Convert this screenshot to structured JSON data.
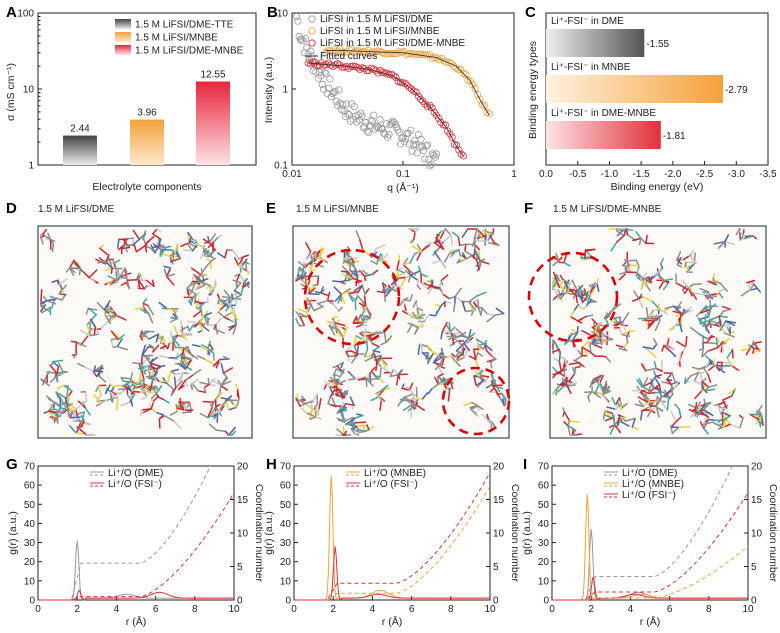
{
  "colors": {
    "gray": "#6e6e6e",
    "orange": "#f5a13a",
    "red": "#e0313a",
    "box": "#3a4a5a"
  },
  "panels": {
    "A": {
      "label": "A",
      "ylabel": "σ (mS cm⁻¹)",
      "xlabel": "Electrolyte components",
      "yticks": [
        "1",
        "10",
        "100"
      ]
    },
    "B": {
      "label": "B",
      "ylabel": "Intensity (a.u.)",
      "xlabel": "q (Å⁻¹)",
      "xticks": [
        "0.01",
        "0.1",
        "1"
      ],
      "yticks": [
        "0.1",
        "1",
        "10"
      ]
    },
    "C": {
      "label": "C",
      "ylabel": "Binding energy types",
      "xlabel": "Binding energy (eV)",
      "xticks": [
        "0.0",
        "-0.5",
        "-1.0",
        "-1.5",
        "-2.0",
        "-2.5",
        "-3.0",
        "-3.5"
      ]
    },
    "D": {
      "label": "D",
      "title": "1.5 M LiFSI/DME"
    },
    "E": {
      "label": "E",
      "title": "1.5 M LiFSI/MNBE"
    },
    "F": {
      "label": "F",
      "title": "1.5 M LiFSI/DME-MNBE"
    },
    "G": {
      "label": "G",
      "legend": [
        "Li⁺/O (DME)",
        "Li⁺/O (FSI⁻)"
      ]
    },
    "H": {
      "label": "H",
      "legend": [
        "Li⁺/O (MNBE)",
        "Li⁺/O (FSI⁻)"
      ]
    },
    "I": {
      "label": "I",
      "legend": [
        "Li⁺/O (DME)",
        "Li⁺/O (MNBE)",
        "Li⁺/O (FSI⁻)"
      ]
    },
    "rdf_axes": {
      "xlabel": "r (Å)",
      "ylabel_left": "g(r) (a.u.)",
      "ylabel_right": "Coordination number",
      "xticks": [
        "0",
        "2",
        "4",
        "6",
        "8",
        "10"
      ],
      "yticks_left": [
        "0",
        "10",
        "20",
        "30",
        "40",
        "50",
        "60",
        "70"
      ],
      "yticks_right": [
        "0",
        "5",
        "10",
        "15",
        "20"
      ]
    }
  },
  "chart_data": [
    {
      "panel": "A",
      "type": "bar",
      "yscale": "log",
      "ylim": [
        1,
        100
      ],
      "categories": [
        "1.5 M LiFSI/DME-TTE",
        "1.5 M LiFSI/MNBE",
        "1.5 M LiFSI/DME-MNBE"
      ],
      "values": [
        2.44,
        3.96,
        12.55
      ],
      "value_labels": [
        "2.44",
        "3.96",
        "12.55"
      ],
      "xlabel": "Electrolyte components",
      "ylabel": "σ (mS cm⁻¹)"
    },
    {
      "panel": "B",
      "type": "scatter",
      "xscale": "log",
      "yscale": "log",
      "xlim": [
        0.01,
        1
      ],
      "ylim": [
        0.1,
        10
      ],
      "series": [
        {
          "name": "LiFSI in 1.5 M LiFSI/DME",
          "x": [
            0.011,
            0.012,
            0.014,
            0.017,
            0.02,
            0.025,
            0.03,
            0.04,
            0.05,
            0.07,
            0.1,
            0.14,
            0.2
          ],
          "y": [
            9,
            5,
            3,
            1.8,
            1.2,
            0.8,
            0.55,
            0.42,
            0.35,
            0.3,
            0.25,
            0.18,
            0.11
          ]
        },
        {
          "name": "LiFSI in 1.5 M LiFSI/MNBE",
          "x": [
            0.02,
            0.03,
            0.05,
            0.1,
            0.2,
            0.3,
            0.4,
            0.5,
            0.6
          ],
          "y": [
            3.2,
            3.2,
            3.1,
            3.0,
            2.6,
            2.0,
            1.3,
            0.7,
            0.45
          ]
        },
        {
          "name": "LiFSI in 1.5 M LiFSI/DME-MNBE",
          "x": [
            0.014,
            0.02,
            0.03,
            0.05,
            0.08,
            0.12,
            0.18,
            0.25,
            0.3,
            0.35
          ],
          "y": [
            2.2,
            2.1,
            2.0,
            1.8,
            1.5,
            1.0,
            0.55,
            0.3,
            0.18,
            0.13
          ]
        }
      ],
      "fit_label": "Fitted curves",
      "xlabel": "q (Å⁻¹)",
      "ylabel": "Intensity (a.u.)"
    },
    {
      "panel": "C",
      "type": "bar",
      "orientation": "horizontal",
      "xlim": [
        0,
        -3.5
      ],
      "categories": [
        "Li⁺-FSI⁻ in DME",
        "Li⁺-FSI⁻ in MNBE",
        "Li⁺-FSI⁻ in DME-MNBE"
      ],
      "values": [
        -1.55,
        -2.79,
        -1.81
      ],
      "value_labels": [
        "-1.55",
        "-2.79",
        "-1.81"
      ],
      "xlabel": "Binding energy (eV)",
      "ylabel": "Binding energy types"
    },
    {
      "panel": "G",
      "type": "line",
      "xlim": [
        0,
        10
      ],
      "ylim": [
        0,
        70
      ],
      "y2lim": [
        0,
        20
      ],
      "series": [
        {
          "name": "Li⁺/O (DME) g(r)",
          "peak_r": 2.0,
          "peak_g": 31,
          "second_r": 4.5,
          "second_g": 2
        },
        {
          "name": "Li⁺/O (FSI⁻) g(r)",
          "peak_r": 2.1,
          "peak_g": 5,
          "second_r": 6.2,
          "second_g": 3
        },
        {
          "name": "Li⁺/O (DME) CN",
          "plateau": 5.5,
          "end_r": 8.8,
          "end_cn": 20
        },
        {
          "name": "Li⁺/O (FSI⁻) CN",
          "plateau": 0.5,
          "end_r": 10,
          "end_cn": 16
        }
      ]
    },
    {
      "panel": "H",
      "type": "line",
      "xlim": [
        0,
        10
      ],
      "ylim": [
        0,
        70
      ],
      "y2lim": [
        0,
        20
      ],
      "series": [
        {
          "name": "Li⁺/O (MNBE) g(r)",
          "peak_r": 1.9,
          "peak_g": 65,
          "second_r": 4.4,
          "second_g": 4
        },
        {
          "name": "Li⁺/O (FSI⁻) g(r)",
          "peak_r": 2.1,
          "peak_g": 28,
          "second_r": 4.3,
          "second_g": 2
        },
        {
          "name": "Li⁺/O (MNBE) CN",
          "plateau": 1.0,
          "end_r": 10,
          "end_cn": 17
        },
        {
          "name": "Li⁺/O (FSI⁻) CN",
          "plateau": 2.5,
          "end_r": 10,
          "end_cn": 19
        }
      ]
    },
    {
      "panel": "I",
      "type": "line",
      "xlim": [
        0,
        10
      ],
      "ylim": [
        0,
        70
      ],
      "y2lim": [
        0,
        20
      ],
      "series": [
        {
          "name": "Li⁺/O (DME) g(r)",
          "peak_r": 2.0,
          "peak_g": 37,
          "second_r": 4.4,
          "second_g": 3
        },
        {
          "name": "Li⁺/O (MNBE) g(r)",
          "peak_r": 1.8,
          "peak_g": 55,
          "second_r": 4.6,
          "second_g": 2
        },
        {
          "name": "Li⁺/O (FSI⁻) g(r)",
          "peak_r": 2.1,
          "peak_g": 12,
          "second_r": 4.2,
          "second_g": 2
        },
        {
          "name": "Li⁺/O (DME) CN",
          "plateau": 3.5,
          "end_r": 9.2,
          "end_cn": 20
        },
        {
          "name": "Li⁺/O (MNBE) CN",
          "plateau": 0.3,
          "end_r": 10,
          "end_cn": 8
        },
        {
          "name": "Li⁺/O (FSI⁻) CN",
          "plateau": 1.2,
          "end_r": 10,
          "end_cn": 16
        }
      ]
    }
  ]
}
